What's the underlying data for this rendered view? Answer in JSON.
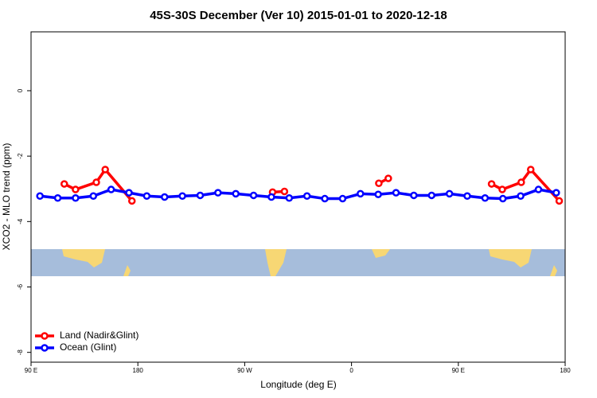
{
  "chart_data": {
    "type": "line",
    "title": "45S-30S December (Ver 10)   2015-01-01 to 2020-12-18",
    "xlabel": "Longitude (deg E)",
    "ylabel": "XCO2 - MLO trend (ppm)",
    "xlim": [
      90,
      540
    ],
    "ylim": [
      -8.3,
      1.8
    ],
    "xticks": [
      {
        "value": 90,
        "label": "90 E"
      },
      {
        "value": 180,
        "label": "180"
      },
      {
        "value": 270,
        "label": "90 W"
      },
      {
        "value": 360,
        "label": "0"
      },
      {
        "value": 450,
        "label": "90 E"
      },
      {
        "value": 540,
        "label": "180"
      }
    ],
    "yticks": [
      0,
      -2,
      -4,
      -6,
      -8
    ],
    "legend": "bottom-left",
    "series": [
      {
        "name": "Land (Nadir&Glint)",
        "color": "#ff0000",
        "x": [
          118,
          127.5,
          145,
          152.5,
          175,
          230,
          293.5,
          303.5,
          340,
          383,
          391,
          440,
          478,
          487,
          503,
          511,
          535
        ],
        "values": [
          -2.85,
          -3.02,
          -2.8,
          -2.41,
          -3.37,
          null,
          -3.1,
          -3.08,
          null,
          -2.83,
          -2.68,
          null,
          -2.85,
          -3.02,
          -2.8,
          -2.41,
          -3.37
        ]
      },
      {
        "name": "Ocean (Glint)",
        "color": "#0000ff",
        "x": [
          97.5,
          112.5,
          127.5,
          142.5,
          157.5,
          172.5,
          187.5,
          202.5,
          217.5,
          232.5,
          247.5,
          262.5,
          277.5,
          292.5,
          307.5,
          322.5,
          337.5,
          352.5,
          367.5,
          382.5,
          397.5,
          412.5,
          427.5,
          442.5,
          457.5,
          472.5,
          487.5,
          502.5,
          517.5,
          532.5
        ],
        "values": [
          -3.22,
          -3.28,
          -3.28,
          -3.22,
          -3.02,
          -3.12,
          -3.22,
          -3.25,
          -3.22,
          -3.2,
          -3.12,
          -3.15,
          -3.2,
          -3.25,
          -3.28,
          -3.22,
          -3.3,
          -3.3,
          -3.15,
          -3.17,
          -3.12,
          -3.2,
          -3.2,
          -3.15,
          -3.22,
          -3.28,
          -3.3,
          -3.22,
          -3.02,
          -3.12
        ]
      }
    ]
  }
}
